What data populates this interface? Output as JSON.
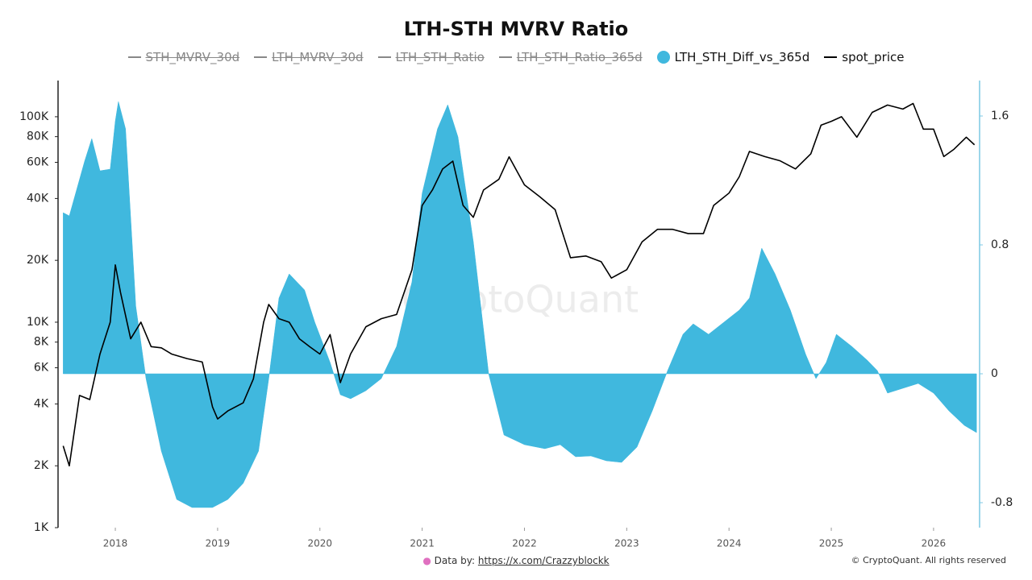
{
  "chart_data": {
    "type": "area_line",
    "title": "LTH-STH MVRV Ratio",
    "hidden_series": [
      "STH_MVRV_30d",
      "LTH_MVRV_30d",
      "LTH_STH_Ratio",
      "LTH_STH_Ratio_365d"
    ],
    "hidden_color": "#888888",
    "xlim": [
      2017.44,
      2026.45
    ],
    "xticks": [
      2018,
      2019,
      2020,
      2021,
      2022,
      2023,
      2024,
      2025,
      2026
    ],
    "ylim": [
      1000,
      150000
    ],
    "log_scale": true,
    "yticks": [
      {
        "value": 1000,
        "label": "1K"
      },
      {
        "value": 2000,
        "label": "2K"
      },
      {
        "value": 4000,
        "label": "4K"
      },
      {
        "value": 6000,
        "label": "6K"
      },
      {
        "value": 8000,
        "label": "8K"
      },
      {
        "value": 10000,
        "label": "10K"
      },
      {
        "value": 20000,
        "label": "20K"
      },
      {
        "value": 40000,
        "label": "40K"
      },
      {
        "value": 60000,
        "label": "60K"
      },
      {
        "value": 80000,
        "label": "80K"
      },
      {
        "value": 100000,
        "label": "100K"
      }
    ],
    "y2lim": [
      -0.955,
      1.82
    ],
    "y2ticks": [
      -0.8,
      0,
      0.8,
      1.6
    ],
    "series": [
      {
        "name": "LTH_STH_Diff_vs_365d",
        "type": "area",
        "axis": "y2",
        "color": "#40b8de",
        "x": [
          2017.49,
          2017.55,
          2017.7,
          2017.77,
          2017.85,
          2017.95,
          2018.0,
          2018.03,
          2018.1,
          2018.2,
          2018.3,
          2018.45,
          2018.6,
          2018.75,
          2018.95,
          2019.1,
          2019.25,
          2019.4,
          2019.5,
          2019.6,
          2019.7,
          2019.85,
          2019.95,
          2020.1,
          2020.2,
          2020.3,
          2020.45,
          2020.6,
          2020.75,
          2020.9,
          2021.0,
          2021.15,
          2021.25,
          2021.35,
          2021.5,
          2021.65,
          2021.8,
          2022.0,
          2022.2,
          2022.35,
          2022.5,
          2022.65,
          2022.8,
          2022.95,
          2023.1,
          2023.25,
          2023.4,
          2023.55,
          2023.65,
          2023.8,
          2023.95,
          2024.1,
          2024.2,
          2024.32,
          2024.45,
          2024.6,
          2024.75,
          2024.85,
          2024.95,
          2025.05,
          2025.2,
          2025.35,
          2025.45,
          2025.55,
          2025.7,
          2025.85,
          2026.0,
          2026.15,
          2026.3,
          2026.42
        ],
        "values": [
          1.0,
          0.98,
          1.32,
          1.46,
          1.26,
          1.27,
          1.57,
          1.69,
          1.52,
          0.42,
          -0.03,
          -0.48,
          -0.78,
          -0.83,
          -0.83,
          -0.78,
          -0.68,
          -0.48,
          -0.03,
          0.47,
          0.62,
          0.52,
          0.32,
          0.07,
          -0.13,
          -0.155,
          -0.105,
          -0.03,
          0.17,
          0.57,
          1.12,
          1.52,
          1.67,
          1.47,
          0.82,
          0,
          -0.38,
          -0.44,
          -0.465,
          -0.44,
          -0.515,
          -0.51,
          -0.54,
          -0.55,
          -0.455,
          -0.23,
          0.02,
          0.245,
          0.31,
          0.245,
          0.32,
          0.395,
          0.47,
          0.78,
          0.62,
          0.395,
          0.12,
          -0.03,
          0.07,
          0.245,
          0.17,
          0.085,
          0.02,
          -0.12,
          -0.09,
          -0.06,
          -0.12,
          -0.23,
          -0.32,
          -0.365
        ]
      },
      {
        "name": "spot_price",
        "type": "line",
        "axis": "y",
        "color": "#000000",
        "x": [
          2017.49,
          2017.55,
          2017.65,
          2017.75,
          2017.85,
          2017.95,
          2018.0,
          2018.05,
          2018.15,
          2018.25,
          2018.35,
          2018.45,
          2018.55,
          2018.7,
          2018.85,
          2018.95,
          2019.0,
          2019.1,
          2019.25,
          2019.35,
          2019.45,
          2019.5,
          2019.6,
          2019.7,
          2019.8,
          2019.9,
          2020.0,
          2020.1,
          2020.2,
          2020.3,
          2020.45,
          2020.6,
          2020.75,
          2020.9,
          2021.0,
          2021.1,
          2021.2,
          2021.3,
          2021.4,
          2021.5,
          2021.6,
          2021.75,
          2021.85,
          2022.0,
          2022.15,
          2022.3,
          2022.45,
          2022.6,
          2022.75,
          2022.85,
          2023.0,
          2023.15,
          2023.3,
          2023.45,
          2023.6,
          2023.75,
          2023.85,
          2024.0,
          2024.1,
          2024.2,
          2024.35,
          2024.5,
          2024.65,
          2024.8,
          2024.9,
          2025.0,
          2025.1,
          2025.25,
          2025.4,
          2025.55,
          2025.7,
          2025.8,
          2025.9,
          2026.0,
          2026.1,
          2026.2,
          2026.32,
          2026.4
        ],
        "values": [
          2500,
          2000,
          4400,
          4200,
          7000,
          10000,
          19000,
          14000,
          8300,
          10000,
          7600,
          7500,
          7000,
          6650,
          6400,
          3870,
          3380,
          3700,
          4050,
          5300,
          10000,
          12200,
          10400,
          10000,
          8300,
          7600,
          7000,
          8700,
          5080,
          7000,
          9500,
          10400,
          10900,
          18000,
          37000,
          44000,
          55700,
          60800,
          37000,
          32400,
          44000,
          49600,
          63800,
          46600,
          40800,
          35300,
          20600,
          21000,
          19700,
          16400,
          18000,
          24600,
          28300,
          28300,
          27000,
          27000,
          37000,
          42500,
          51000,
          67800,
          64000,
          61000,
          55700,
          66000,
          91000,
          95000,
          100000,
          79500,
          105000,
          114000,
          109000,
          116000,
          87000,
          87000,
          64000,
          69500,
          79500,
          73000
        ]
      }
    ],
    "watermark": "CryptoQuant",
    "source_prefix": "Data by:",
    "source_url": "https://x.com/Crazzyblockk",
    "copyright": "© CryptoQuant. All rights reserved"
  }
}
